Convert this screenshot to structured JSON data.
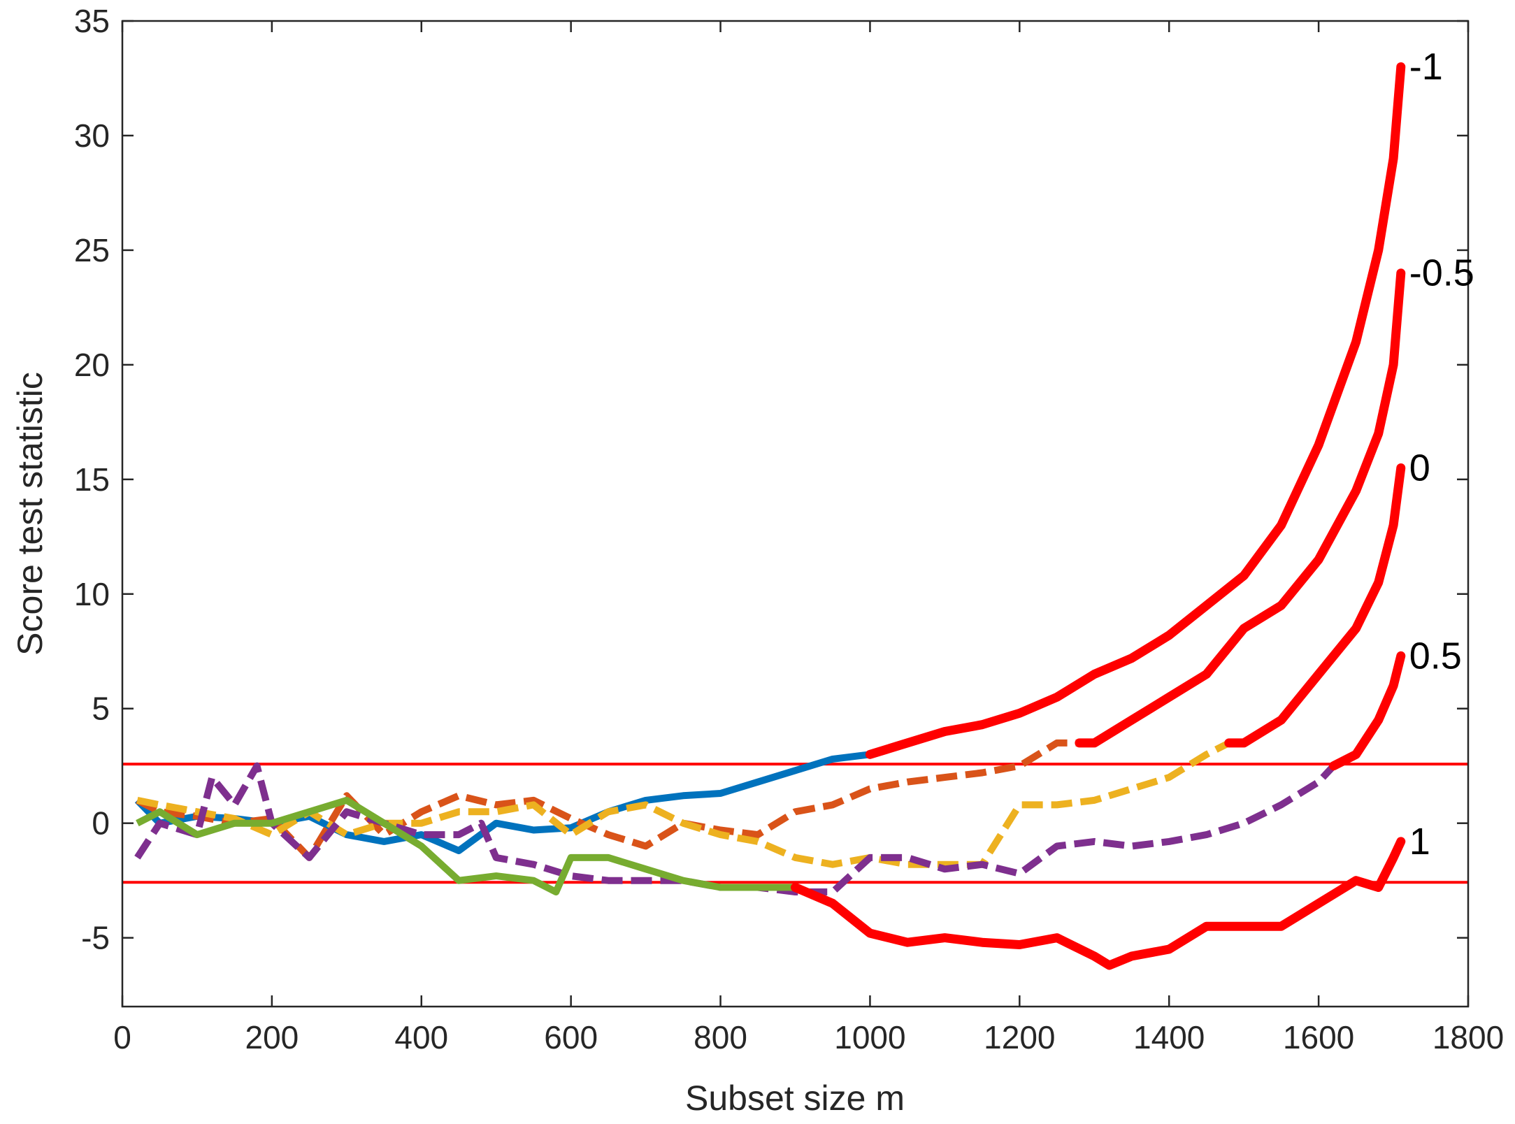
{
  "chart_data": {
    "type": "line",
    "xlabel": "Subset size m",
    "ylabel": "Score test statistic",
    "xlim": [
      0,
      1800
    ],
    "ylim": [
      -8,
      35
    ],
    "xticks": [
      0,
      200,
      400,
      600,
      800,
      1000,
      1200,
      1400,
      1600,
      1800
    ],
    "yticks": [
      -5,
      0,
      5,
      10,
      15,
      20,
      25,
      30,
      35
    ],
    "xtick_labels": [
      "0",
      "200",
      "400",
      "600",
      "800",
      "1000",
      "1200",
      "1400",
      "1600",
      "1800"
    ],
    "ytick_labels": [
      "-5",
      "0",
      "5",
      "10",
      "15",
      "20",
      "25",
      "30",
      "35"
    ],
    "grid": false,
    "reference_lines": [
      2.58,
      -2.58
    ],
    "reference_line_color": "#ff0000",
    "highlight_color": "#ff0000",
    "series": [
      {
        "name": "-1",
        "color": "#0072bd",
        "dash": "solid",
        "highlight_from": 1000,
        "x": [
          20,
          50,
          100,
          150,
          200,
          250,
          300,
          350,
          400,
          450,
          500,
          550,
          600,
          650,
          700,
          750,
          800,
          850,
          900,
          950,
          1000,
          1050,
          1100,
          1150,
          1200,
          1250,
          1300,
          1350,
          1400,
          1450,
          1500,
          1550,
          1600,
          1650,
          1680,
          1700,
          1710
        ],
        "values": [
          1.0,
          0.0,
          0.3,
          0.2,
          0.0,
          0.3,
          -0.5,
          -0.8,
          -0.5,
          -1.2,
          0.0,
          -0.3,
          -0.2,
          0.5,
          1.0,
          1.2,
          1.3,
          1.8,
          2.3,
          2.8,
          3.0,
          3.5,
          4.0,
          4.3,
          4.8,
          5.5,
          6.5,
          7.2,
          8.2,
          9.5,
          10.8,
          13.0,
          16.5,
          21.0,
          25.0,
          29.0,
          33.0
        ]
      },
      {
        "name": "-0.5",
        "color": "#d95319",
        "dash": "dash",
        "highlight_from": 1280,
        "x": [
          20,
          50,
          100,
          150,
          200,
          250,
          300,
          350,
          400,
          450,
          500,
          550,
          600,
          650,
          700,
          750,
          800,
          850,
          900,
          950,
          1000,
          1050,
          1100,
          1150,
          1200,
          1250,
          1280,
          1300,
          1350,
          1400,
          1450,
          1500,
          1550,
          1600,
          1650,
          1680,
          1700,
          1710
        ],
        "values": [
          1.0,
          0.5,
          0.3,
          0.0,
          0.2,
          -1.5,
          1.2,
          -0.5,
          0.5,
          1.2,
          0.8,
          1.0,
          0.2,
          -0.5,
          -1.0,
          0.0,
          -0.3,
          -0.5,
          0.5,
          0.8,
          1.5,
          1.8,
          2.0,
          2.2,
          2.5,
          3.5,
          3.5,
          3.5,
          4.5,
          5.5,
          6.5,
          8.5,
          9.5,
          11.5,
          14.5,
          17.0,
          20.0,
          24.0
        ]
      },
      {
        "name": "0",
        "color": "#edb120",
        "dash": "dash",
        "highlight_from": 1480,
        "x": [
          20,
          50,
          100,
          150,
          200,
          250,
          300,
          350,
          400,
          450,
          500,
          550,
          600,
          650,
          700,
          750,
          800,
          850,
          900,
          950,
          1000,
          1050,
          1100,
          1150,
          1200,
          1250,
          1300,
          1350,
          1400,
          1450,
          1480,
          1500,
          1550,
          1600,
          1650,
          1680,
          1700,
          1710
        ],
        "values": [
          1.0,
          0.8,
          0.5,
          0.2,
          -0.5,
          0.5,
          -0.5,
          0.0,
          0.0,
          0.5,
          0.5,
          0.8,
          -0.5,
          0.5,
          0.8,
          0.0,
          -0.5,
          -0.8,
          -1.5,
          -1.8,
          -1.5,
          -1.8,
          -1.8,
          -1.8,
          0.8,
          0.8,
          1.0,
          1.5,
          2.0,
          3.0,
          3.5,
          3.5,
          4.5,
          6.5,
          8.5,
          10.5,
          13.0,
          15.5
        ]
      },
      {
        "name": "0.5",
        "color": "#7e2f8e",
        "dash": "dash",
        "highlight_from": 1620,
        "x": [
          20,
          50,
          100,
          120,
          150,
          180,
          200,
          250,
          300,
          350,
          400,
          450,
          480,
          500,
          550,
          600,
          650,
          700,
          750,
          800,
          850,
          900,
          950,
          1000,
          1050,
          1100,
          1150,
          1200,
          1250,
          1300,
          1350,
          1400,
          1450,
          1500,
          1550,
          1600,
          1620,
          1650,
          1680,
          1700,
          1710
        ],
        "values": [
          -1.5,
          0.0,
          -0.5,
          2.0,
          0.8,
          2.5,
          0.0,
          -1.5,
          0.5,
          0.0,
          -0.5,
          -0.5,
          0.0,
          -1.5,
          -1.8,
          -2.3,
          -2.5,
          -2.5,
          -2.5,
          -2.8,
          -2.8,
          -3.0,
          -3.0,
          -1.5,
          -1.5,
          -2.0,
          -1.8,
          -2.2,
          -1.0,
          -0.8,
          -1.0,
          -0.8,
          -0.5,
          0.0,
          0.8,
          1.8,
          2.5,
          3.0,
          4.5,
          6.0,
          7.3
        ]
      },
      {
        "name": "1",
        "color": "#77ac30",
        "dash": "solid",
        "highlight_from": 900,
        "x": [
          20,
          50,
          100,
          150,
          200,
          250,
          300,
          350,
          400,
          450,
          500,
          550,
          580,
          600,
          650,
          700,
          750,
          800,
          850,
          900,
          950,
          1000,
          1050,
          1100,
          1150,
          1200,
          1250,
          1300,
          1320,
          1350,
          1400,
          1450,
          1500,
          1550,
          1600,
          1650,
          1680,
          1700,
          1710
        ],
        "values": [
          0.0,
          0.5,
          -0.5,
          0.0,
          0.0,
          0.5,
          1.0,
          0.0,
          -1.0,
          -2.5,
          -2.3,
          -2.5,
          -3.0,
          -1.5,
          -1.5,
          -2.0,
          -2.5,
          -2.8,
          -2.8,
          -2.8,
          -3.5,
          -4.8,
          -5.2,
          -5.0,
          -5.2,
          -5.3,
          -5.0,
          -5.8,
          -6.2,
          -5.8,
          -5.5,
          -4.5,
          -4.5,
          -4.5,
          -3.5,
          -2.5,
          -2.8,
          -1.5,
          -0.8
        ]
      }
    ]
  }
}
